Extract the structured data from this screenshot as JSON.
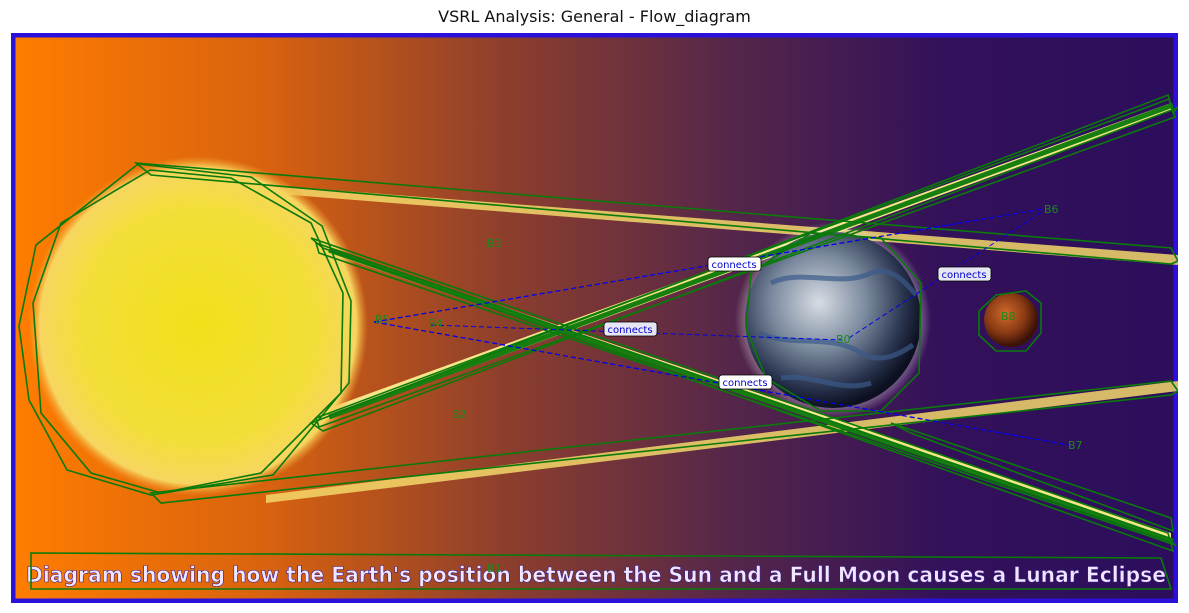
{
  "figure": {
    "title": "VSRL Analysis: General - Flow_diagram"
  },
  "image": {
    "caption": "Diagram showing how the Earth's position between the Sun and a Full Moon causes a Lunar Eclipse",
    "objects": {
      "sun": "sun",
      "earth": "earth",
      "moon": "moon"
    }
  },
  "annotations": {
    "box_labels": [
      "B0",
      "B1",
      "B2",
      "B3",
      "B4",
      "B5",
      "B6",
      "B7",
      "B8"
    ],
    "relation_labels": [
      "connects",
      "connects",
      "connects",
      "connects"
    ]
  },
  "colors": {
    "box_outline": "#0a7a0a",
    "relation_line": "#0000ff",
    "label_text": "#1a8a1a",
    "relation_text": "#0000cc",
    "frame": "#2a0acc",
    "sun": "#f2e21e",
    "sky_left": "#ff7a00",
    "sky_right": "#2a0d5a"
  }
}
